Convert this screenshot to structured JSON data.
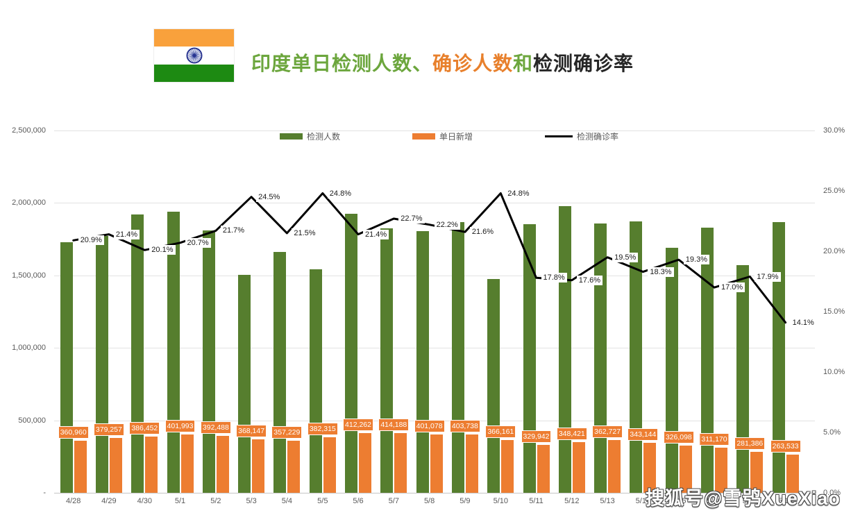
{
  "title": {
    "part1": "印度单日检测人数、",
    "part2": "确诊人数",
    "part3": "和",
    "part4": "检测确诊率"
  },
  "colors": {
    "bar_green": "#567e2e",
    "bar_orange": "#ed7d31",
    "line_black": "#000000",
    "title_green": "#6ca63d",
    "title_orange": "#e8802c",
    "title_black": "#262626",
    "flag_saffron": "#f9a13c",
    "flag_green": "#1d8a12",
    "chakra_navy": "#283490",
    "axis_text": "#595959"
  },
  "legend": {
    "items": [
      {
        "label": "检测人数"
      },
      {
        "label": "单日新增"
      },
      {
        "label": "检测确诊率"
      }
    ]
  },
  "watermark": "搜狐号@雪鸮XueXiao",
  "chart_data": {
    "type": "bar+line combo",
    "title": "印度单日检测人数、确诊人数和检测确诊率",
    "grid": true,
    "legend_position": "top",
    "categories": [
      "4/28",
      "4/29",
      "4/30",
      "5/1",
      "5/2",
      "5/3",
      "5/4",
      "5/5",
      "5/6",
      "5/7",
      "5/8",
      "5/9",
      "5/10",
      "5/11",
      "5/12",
      "5/13",
      "5/14",
      "5/15",
      "5/16",
      "5/17",
      "5/18"
    ],
    "series": [
      {
        "name": "检测人数",
        "type": "bar",
        "axis": "left",
        "values": [
          1727000,
          1772000,
          1923000,
          1942000,
          1809000,
          1503000,
          1662000,
          1542000,
          1927000,
          1825000,
          1807000,
          1869000,
          1477000,
          1854000,
          1980000,
          1860000,
          1875000,
          1690000,
          1830000,
          1572000,
          1869000
        ]
      },
      {
        "name": "单日新增",
        "type": "bar",
        "axis": "left",
        "values": [
          360960,
          379257,
          386452,
          401993,
          392488,
          368147,
          357229,
          382315,
          412262,
          414188,
          401078,
          403738,
          366161,
          329942,
          348421,
          362727,
          343144,
          326098,
          311170,
          281386,
          263533
        ],
        "labels": [
          "360,960",
          "379,257",
          "386,452",
          "401,993",
          "392,488",
          "368,147",
          "357,229",
          "382,315",
          "412,262",
          "414,188",
          "401,078",
          "403,738",
          "366,161",
          "329,942",
          "348,421",
          "362,727",
          "343,144",
          "326,098",
          "311,170",
          "281,386",
          "263,533"
        ]
      },
      {
        "name": "检测确诊率",
        "type": "line",
        "axis": "right",
        "values": [
          20.9,
          21.4,
          20.1,
          20.7,
          21.7,
          24.5,
          21.5,
          24.8,
          21.4,
          22.7,
          22.2,
          21.6,
          24.8,
          17.8,
          17.6,
          19.5,
          18.3,
          19.3,
          17.0,
          17.9,
          14.1
        ],
        "labels": [
          "20.9%",
          "21.4%",
          "20.1%",
          "20.7%",
          "21.7%",
          "24.5%",
          "21.5%",
          "24.8%",
          "21.4%",
          "22.7%",
          "22.2%",
          "21.6%",
          "24.8%",
          "17.8%",
          "17.6%",
          "19.5%",
          "18.3%",
          "19.3%",
          "17.0%",
          "17.9%",
          "14.1%"
        ]
      }
    ],
    "left_axis": {
      "min": 0,
      "max": 2500000,
      "ticks": [
        "2,500,000",
        "2,000,000",
        "1,500,000",
        "1,000,000",
        "500,000",
        "-"
      ]
    },
    "right_axis": {
      "min": 0,
      "max": 30,
      "ticks": [
        "30.0%",
        "25.0%",
        "20.0%",
        "15.0%",
        "10.0%",
        "5.0%",
        "0.0%"
      ]
    }
  }
}
